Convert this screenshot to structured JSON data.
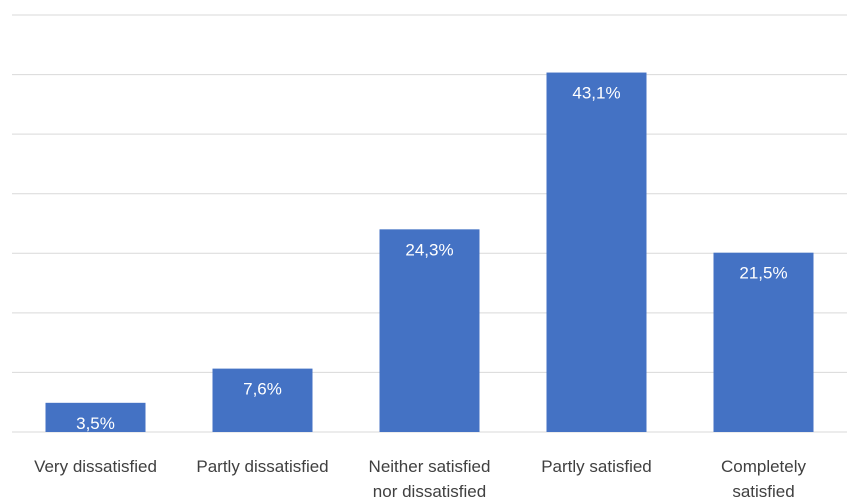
{
  "chart_data": {
    "type": "bar",
    "categories": [
      "Very dissatisfied",
      "Partly dissatisfied",
      "Neither satisfied nor dissatisfied",
      "Partly satisfied",
      "Completely satisfied"
    ],
    "category_lines": [
      [
        "Very dissatisfied"
      ],
      [
        "Partly dissatisfied"
      ],
      [
        "Neither satisfied",
        "nor dissatisfied"
      ],
      [
        "Partly satisfied"
      ],
      [
        "Completely",
        "satisfied"
      ]
    ],
    "values": [
      3.5,
      7.6,
      24.3,
      43.1,
      21.5
    ],
    "value_labels": [
      "3,5%",
      "7,6%",
      "24,3%",
      "43,1%",
      "21,5%"
    ],
    "ylim": [
      0,
      50
    ],
    "grid": true,
    "bar_color": "#4472c4",
    "gridline_color": "#d9d9d9",
    "label_color": "#404040",
    "title": "",
    "xlabel": "",
    "ylabel": ""
  }
}
